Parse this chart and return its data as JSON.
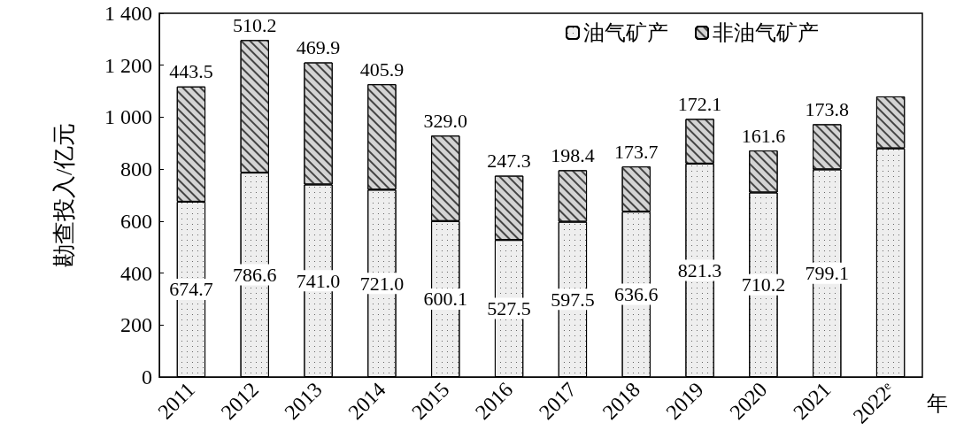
{
  "chart_data": {
    "type": "bar",
    "stacked": true,
    "xlabel": "年",
    "ylabel": "勘查投入/亿元",
    "categories": [
      "2011",
      "2012",
      "2013",
      "2014",
      "2015",
      "2016",
      "2017",
      "2018",
      "2019",
      "2020",
      "2021",
      "2022ᵉ"
    ],
    "series": [
      {
        "name": "油气矿产",
        "color": "#eeeeee",
        "values": [
          674.7,
          786.6,
          741.0,
          721.0,
          600.1,
          527.5,
          597.5,
          636.6,
          821.3,
          710.2,
          799.1,
          880
        ],
        "value_labels": [
          "674.7",
          "786.6",
          "741.0",
          "721.0",
          "600.1",
          "527.5",
          "597.5",
          "636.6",
          "821.3",
          "710.2",
          "799.1",
          null
        ]
      },
      {
        "name": "非油气矿产",
        "color": "#d4d4d4",
        "values": [
          443.5,
          510.2,
          469.9,
          405.9,
          329.0,
          247.3,
          198.4,
          173.7,
          172.1,
          161.6,
          173.8,
          200
        ],
        "value_labels": [
          "443.5",
          "510.2",
          "469.9",
          "405.9",
          "329.0",
          "247.3",
          "198.4",
          "173.7",
          "172.1",
          "161.6",
          "173.8",
          null
        ]
      }
    ],
    "ylim": [
      0,
      1400
    ],
    "yticks": [
      0,
      200,
      400,
      600,
      800,
      {
        "value": 1000,
        "label": "1 000"
      },
      {
        "value": 1200,
        "label": "1 200"
      },
      {
        "value": 1400,
        "label": "1 400"
      }
    ],
    "grid": false,
    "legend": "top right"
  }
}
